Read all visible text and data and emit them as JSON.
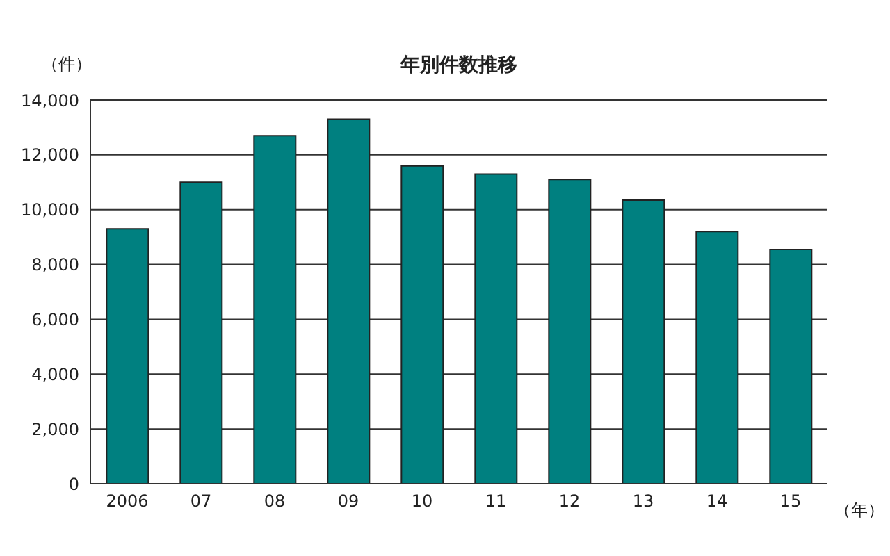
{
  "chart_data": {
    "type": "bar",
    "title": "年別件数推移",
    "ylabel": "（件）",
    "xlabel": "（年）",
    "categories": [
      "2006",
      "07",
      "08",
      "09",
      "10",
      "11",
      "12",
      "13",
      "14",
      "15"
    ],
    "values": [
      9300,
      11000,
      12700,
      13300,
      11600,
      11300,
      11100,
      10350,
      9200,
      8550
    ],
    "color": "#008080",
    "ylim": [
      0,
      14000
    ],
    "yticks": [
      0,
      {
        "value": 2000,
        "label": "2,000"
      },
      {
        "value": 4000,
        "label": "4,000"
      },
      {
        "value": 6000,
        "label": "6,000"
      },
      {
        "value": 8000,
        "label": "8,000"
      },
      {
        "value": 10000,
        "label": "10,000"
      },
      {
        "value": 12000,
        "label": "12,000"
      },
      {
        "value": 14000,
        "label": "14,000"
      }
    ],
    "grid": "y"
  }
}
